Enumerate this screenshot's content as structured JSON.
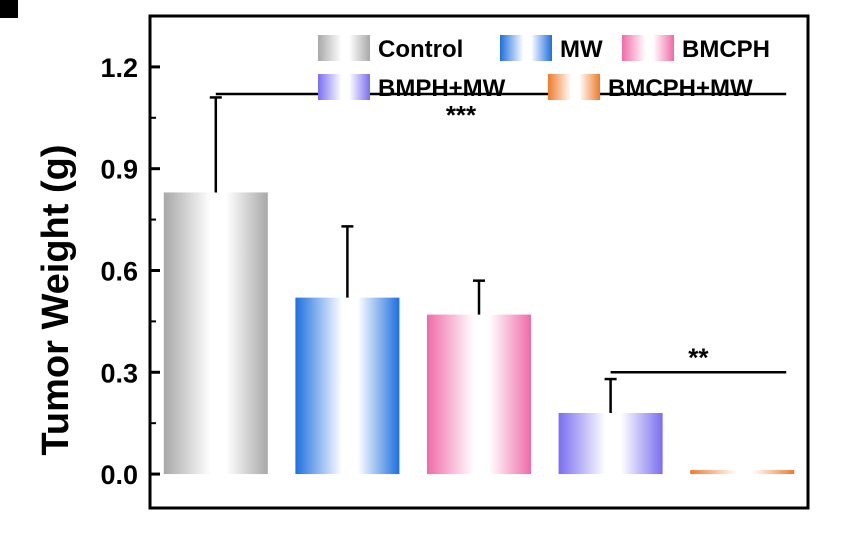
{
  "chart_data": {
    "type": "bar",
    "ylabel": "Tumor Weight (g)",
    "xlabel": "",
    "ylim": [
      -0.1,
      1.35
    ],
    "yticks": [
      "0.0",
      "0.3",
      "0.6",
      "0.9",
      "1.2"
    ],
    "ytick_values": [
      0.0,
      0.3,
      0.6,
      0.9,
      1.2
    ],
    "grid": false,
    "legend_position": "top-right",
    "series": [
      {
        "name": "Control",
        "value": 0.83,
        "error": 0.28,
        "color": "#a8a8a8"
      },
      {
        "name": "MW",
        "value": 0.52,
        "error": 0.21,
        "color": "#1e6fe0"
      },
      {
        "name": "BMCPH",
        "value": 0.47,
        "error": 0.1,
        "color": "#f06aa8"
      },
      {
        "name": "BMPH+MW",
        "value": 0.18,
        "error": 0.1,
        "color": "#7a6ef0"
      },
      {
        "name": "BMCPH+MW",
        "value": 0.0,
        "error": 0.0,
        "color": "#f07a2a"
      }
    ],
    "significance": [
      {
        "label": "***",
        "from": 0,
        "to": 4,
        "y": 1.12
      },
      {
        "label": "**",
        "from": 3,
        "to": 4,
        "y": 0.3
      }
    ]
  }
}
